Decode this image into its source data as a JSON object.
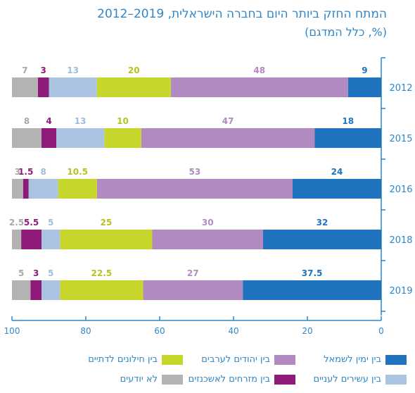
{
  "title": "המתח החזק ביותר היום בחברה הישראלית, 2019–2012",
  "subtitle": "(%, כלל המדגם)",
  "chart_data": {
    "type": "bar",
    "orientation": "horizontal",
    "stacked": true,
    "x_reversed": true,
    "xlim": [
      0,
      100
    ],
    "xticks": [
      0,
      20,
      40,
      60,
      80,
      100
    ],
    "categories": [
      "2012",
      "2015",
      "2016",
      "2018",
      "2019"
    ],
    "series": [
      {
        "name": "בין ימין לשמאל",
        "color": "#1f74bd",
        "values": [
          9,
          18,
          24,
          32,
          37.5
        ]
      },
      {
        "name": "בין יהודים לערבים",
        "color": "#b08ac0",
        "values": [
          48,
          47,
          53,
          30,
          27
        ]
      },
      {
        "name": "בין חילונים לדתיים",
        "color": "#c7d62a",
        "values": [
          20,
          10,
          10.5,
          25,
          22.5
        ]
      },
      {
        "name": "בין עשירים לעניים",
        "color": "#aac3e0",
        "values": [
          13,
          13,
          8,
          5,
          5
        ]
      },
      {
        "name": "בין מזרחים לאשכנזים",
        "color": "#8e1a7a",
        "values": [
          3,
          4,
          1.5,
          5.5,
          3
        ]
      },
      {
        "name": "לא יודעים",
        "color": "#b3b3b3",
        "values": [
          7,
          8,
          3,
          2.5,
          5
        ]
      }
    ],
    "label_colors": [
      "#1f74bd",
      "#b08ac0",
      "#b4c41c",
      "#a1bcdb",
      "#8e1a7a",
      "#a8a8a8"
    ],
    "grid": false,
    "legend_position": "bottom"
  }
}
